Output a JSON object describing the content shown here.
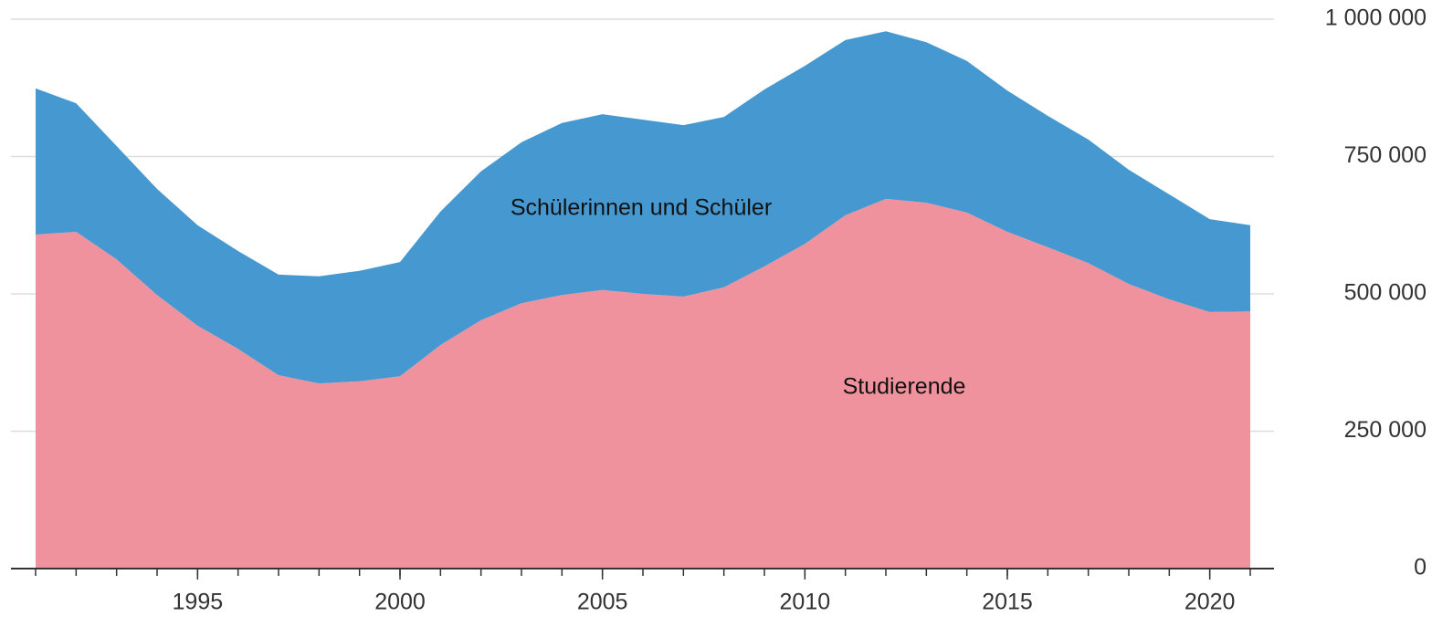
{
  "chart_data": {
    "type": "stacked-area",
    "x": [
      1991,
      1992,
      1993,
      1994,
      1995,
      1996,
      1997,
      1998,
      1999,
      2000,
      2001,
      2002,
      2003,
      2004,
      2005,
      2006,
      2007,
      2008,
      2009,
      2010,
      2011,
      2012,
      2013,
      2014,
      2015,
      2016,
      2017,
      2018,
      2019,
      2020,
      2021
    ],
    "series": [
      {
        "name": "Studierende",
        "color": "#f0929d",
        "values": [
          608000,
          613000,
          563000,
          498000,
          442000,
          400000,
          352000,
          337000,
          341000,
          350000,
          407000,
          452000,
          483000,
          498000,
          507000,
          500000,
          495000,
          512000,
          550000,
          591000,
          643000,
          673000,
          666000,
          648000,
          613000,
          585000,
          556000,
          518000,
          490000,
          467000,
          468000
        ]
      },
      {
        "name": "Schülerinnen und Schüler",
        "color": "#4699d0",
        "values": [
          266000,
          234000,
          206000,
          193000,
          183000,
          178000,
          183000,
          195000,
          201000,
          208000,
          243000,
          271000,
          293000,
          313000,
          320000,
          317000,
          312000,
          310000,
          322000,
          324000,
          319000,
          305000,
          292000,
          276000,
          257000,
          239000,
          225000,
          208000,
          191000,
          169000,
          157000
        ]
      }
    ],
    "xlim": [
      1991,
      2021
    ],
    "xticks": [
      1995,
      2000,
      2005,
      2010,
      2015,
      2020
    ],
    "ylim": [
      0,
      1000000
    ],
    "yticks": [
      0,
      {
        "value": 250000,
        "label": "250 000"
      },
      {
        "value": 500000,
        "label": "500 000"
      },
      {
        "value": 750000,
        "label": "750 000"
      },
      {
        "value": 1000000,
        "label": "1 000 000"
      }
    ],
    "grid": true
  }
}
